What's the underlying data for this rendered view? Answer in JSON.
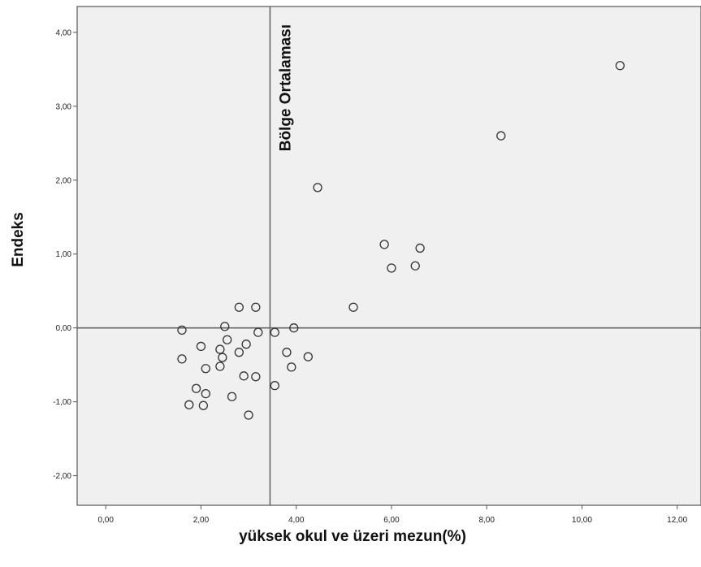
{
  "chart_data": {
    "type": "scatter",
    "xlabel": "yüksek okul ve üzeri mezun(%)",
    "ylabel": "Endeks",
    "xlim": [
      -0.6,
      12.5
    ],
    "ylim": [
      -2.4,
      4.35
    ],
    "x_ticks": [
      0,
      2,
      4,
      6,
      8,
      10,
      12
    ],
    "x_tick_labels": [
      "0,00",
      "2,00",
      "4,00",
      "6,00",
      "8,00",
      "10,00",
      "12,00"
    ],
    "y_ticks": [
      -2,
      -1,
      0,
      1,
      2,
      3,
      4
    ],
    "y_tick_labels": [
      "-2,00",
      "-1,00",
      "0,00",
      "1,00",
      "2,00",
      "3,00",
      "4,00"
    ],
    "grid": false,
    "plot_background": "#f0f0f0",
    "marker": "hollow-circle",
    "marker_color": "#333333",
    "reference_lines": [
      {
        "orientation": "vertical",
        "value": 3.45,
        "label": "Bölge Ortalaması"
      },
      {
        "orientation": "horizontal",
        "value": 0,
        "label": ""
      }
    ],
    "points": [
      {
        "x": 10.8,
        "y": 3.55
      },
      {
        "x": 8.3,
        "y": 2.6
      },
      {
        "x": 4.45,
        "y": 1.9
      },
      {
        "x": 5.85,
        "y": 1.13
      },
      {
        "x": 6.6,
        "y": 1.08
      },
      {
        "x": 6.0,
        "y": 0.81
      },
      {
        "x": 6.5,
        "y": 0.84
      },
      {
        "x": 5.2,
        "y": 0.28
      },
      {
        "x": 2.8,
        "y": 0.28
      },
      {
        "x": 3.15,
        "y": 0.28
      },
      {
        "x": 1.6,
        "y": -0.03
      },
      {
        "x": 2.5,
        "y": 0.02
      },
      {
        "x": 3.2,
        "y": -0.06
      },
      {
        "x": 3.55,
        "y": -0.06
      },
      {
        "x": 3.95,
        "y": 0.0
      },
      {
        "x": 2.55,
        "y": -0.16
      },
      {
        "x": 2.95,
        "y": -0.22
      },
      {
        "x": 2.0,
        "y": -0.25
      },
      {
        "x": 2.4,
        "y": -0.29
      },
      {
        "x": 2.8,
        "y": -0.33
      },
      {
        "x": 3.8,
        "y": -0.33
      },
      {
        "x": 2.45,
        "y": -0.4
      },
      {
        "x": 1.6,
        "y": -0.42
      },
      {
        "x": 4.25,
        "y": -0.39
      },
      {
        "x": 2.1,
        "y": -0.55
      },
      {
        "x": 2.4,
        "y": -0.52
      },
      {
        "x": 3.9,
        "y": -0.53
      },
      {
        "x": 2.9,
        "y": -0.65
      },
      {
        "x": 3.15,
        "y": -0.66
      },
      {
        "x": 1.9,
        "y": -0.82
      },
      {
        "x": 3.55,
        "y": -0.78
      },
      {
        "x": 2.1,
        "y": -0.89
      },
      {
        "x": 2.65,
        "y": -0.93
      },
      {
        "x": 1.75,
        "y": -1.04
      },
      {
        "x": 2.05,
        "y": -1.05
      },
      {
        "x": 3.0,
        "y": -1.18
      }
    ]
  }
}
